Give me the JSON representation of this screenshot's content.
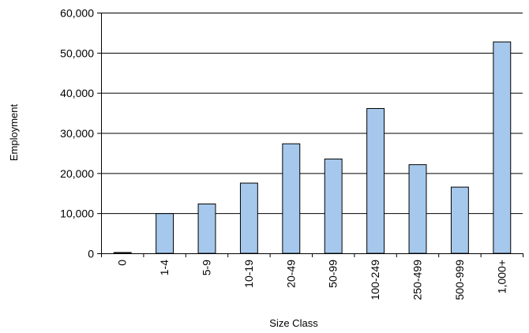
{
  "chart_data": {
    "type": "bar",
    "title": "",
    "xlabel": "Size Class",
    "ylabel": "Employment",
    "categories": [
      "0",
      "1-4",
      "5-9",
      "10-19",
      "20-49",
      "50-99",
      "100-249",
      "250-499",
      "500-999",
      "1,000+"
    ],
    "values": [
      300,
      10000,
      12400,
      17600,
      27400,
      23600,
      36200,
      22200,
      16600,
      52800
    ],
    "ylim": [
      0,
      60000
    ],
    "yticks": [
      0,
      10000,
      20000,
      30000,
      40000,
      50000,
      60000
    ],
    "ytick_labels": [
      "0",
      "10,000",
      "20,000",
      "30,000",
      "40,000",
      "50,000",
      "60,000"
    ],
    "gridlines": true,
    "legend": "none",
    "colors": {
      "bar_fill": "#a6c8ec",
      "bar_stroke": "#000000",
      "grid": "#000000",
      "axis": "#000000"
    }
  }
}
